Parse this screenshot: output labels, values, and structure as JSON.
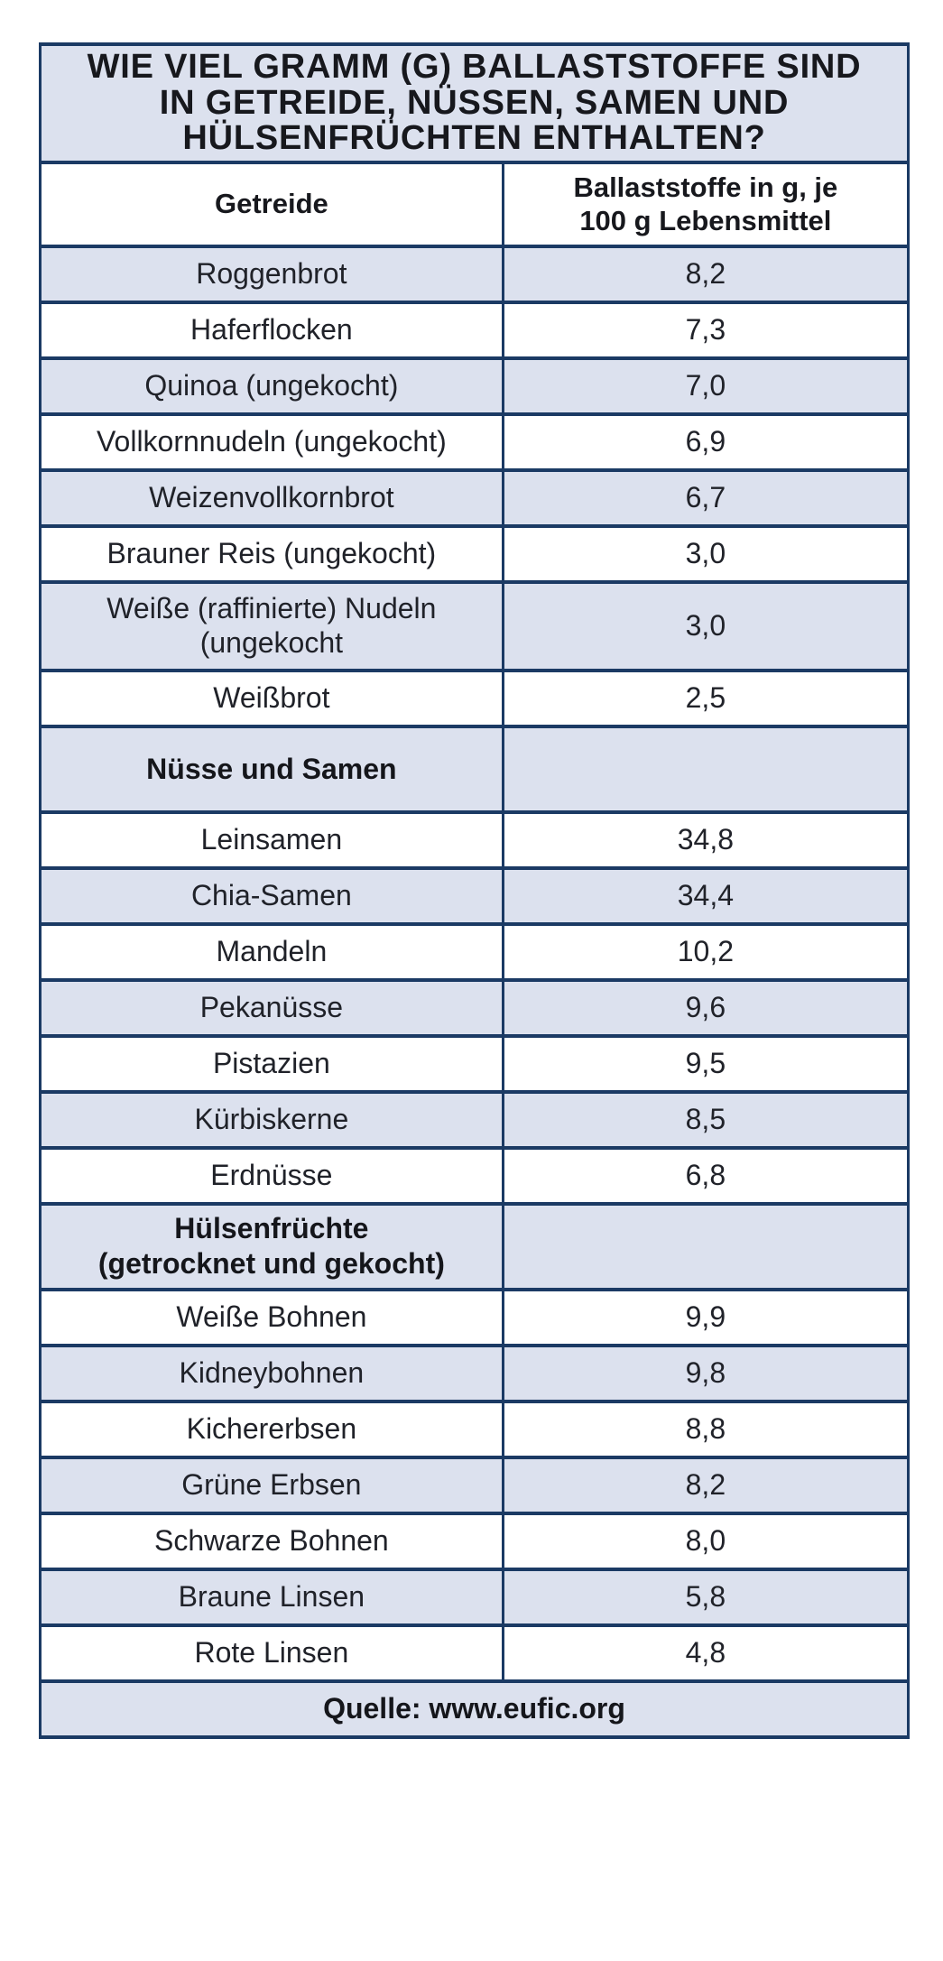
{
  "table": {
    "title": "WIE VIEL GRAMM (G) BALLASTSTOFFE SIND\nIN GETREIDE, NÜSSEN, SAMEN UND\nHÜLSENFRÜCHTEN ENTHALTEN?",
    "header": {
      "col1": "Getreide",
      "col2": "Ballaststoffe in g, je\n100 g Lebensmittel"
    },
    "rows": [
      {
        "type": "item",
        "label": "Roggenbrot",
        "value": "8,2",
        "shaded": true
      },
      {
        "type": "item",
        "label": "Haferflocken",
        "value": "7,3",
        "shaded": false
      },
      {
        "type": "item",
        "label": "Quinoa (ungekocht)",
        "value": "7,0",
        "shaded": true
      },
      {
        "type": "item",
        "label": "Vollkornnudeln (ungekocht)",
        "value": "6,9",
        "shaded": false
      },
      {
        "type": "item",
        "label": "Weizenvollkornbrot",
        "value": "6,7",
        "shaded": true
      },
      {
        "type": "item",
        "label": "Brauner Reis (ungekocht)",
        "value": "3,0",
        "shaded": false
      },
      {
        "type": "item",
        "label": "Weiße (raffinierte) Nudeln\n(ungekocht",
        "value": "3,0",
        "shaded": true,
        "two_line": true
      },
      {
        "type": "item",
        "label": "Weißbrot",
        "value": "2,5",
        "shaded": false
      },
      {
        "type": "section",
        "label": "Nüsse und Samen",
        "value": "",
        "shaded": true
      },
      {
        "type": "item",
        "label": "Leinsamen",
        "value": "34,8",
        "shaded": false
      },
      {
        "type": "item",
        "label": "Chia-Samen",
        "value": "34,4",
        "shaded": true
      },
      {
        "type": "item",
        "label": "Mandeln",
        "value": "10,2",
        "shaded": false
      },
      {
        "type": "item",
        "label": "Pekanüsse",
        "value": "9,6",
        "shaded": true
      },
      {
        "type": "item",
        "label": "Pistazien",
        "value": "9,5",
        "shaded": false
      },
      {
        "type": "item",
        "label": "Kürbiskerne",
        "value": "8,5",
        "shaded": true
      },
      {
        "type": "item",
        "label": "Erdnüsse",
        "value": "6,8",
        "shaded": false
      },
      {
        "type": "section",
        "label": "Hülsenfrüchte\n(getrocknet und gekocht)",
        "value": "",
        "shaded": true
      },
      {
        "type": "item",
        "label": "Weiße Bohnen",
        "value": "9,9",
        "shaded": false
      },
      {
        "type": "item",
        "label": "Kidneybohnen",
        "value": "9,8",
        "shaded": true
      },
      {
        "type": "item",
        "label": "Kichererbsen",
        "value": "8,8",
        "shaded": false
      },
      {
        "type": "item",
        "label": "Grüne Erbsen",
        "value": "8,2",
        "shaded": true
      },
      {
        "type": "item",
        "label": "Schwarze Bohnen",
        "value": "8,0",
        "shaded": false
      },
      {
        "type": "item",
        "label": "Braune Linsen",
        "value": "5,8",
        "shaded": true
      },
      {
        "type": "item",
        "label": "Rote Linsen",
        "value": "4,8",
        "shaded": false
      }
    ],
    "footer": "Quelle: www.eufic.org"
  },
  "colors": {
    "border_navy": "#1b3a64",
    "shaded_row": "#dce1ee",
    "text_dark": "#202229"
  },
  "chart_data": {
    "type": "table",
    "title": "WIE VIEL GRAMM (G) BALLASTSTOFFE SIND IN GETREIDE, NÜSSEN, SAMEN UND HÜLSENFRÜCHTEN ENTHALTEN?",
    "columns": [
      "Getreide",
      "Ballaststoffe in g, je 100 g Lebensmittel"
    ],
    "unit": "g Ballaststoffe je 100 g Lebensmittel",
    "sections": [
      {
        "name": "Getreide",
        "rows": [
          [
            "Roggenbrot",
            8.2
          ],
          [
            "Haferflocken",
            7.3
          ],
          [
            "Quinoa (ungekocht)",
            7.0
          ],
          [
            "Vollkornnudeln (ungekocht)",
            6.9
          ],
          [
            "Weizenvollkornbrot",
            6.7
          ],
          [
            "Brauner Reis (ungekocht)",
            3.0
          ],
          [
            "Weiße (raffinierte) Nudeln (ungekocht",
            3.0
          ],
          [
            "Weißbrot",
            2.5
          ]
        ]
      },
      {
        "name": "Nüsse und Samen",
        "rows": [
          [
            "Leinsamen",
            34.8
          ],
          [
            "Chia-Samen",
            34.4
          ],
          [
            "Mandeln",
            10.2
          ],
          [
            "Pekanüsse",
            9.6
          ],
          [
            "Pistazien",
            9.5
          ],
          [
            "Kürbiskerne",
            8.5
          ],
          [
            "Erdnüsse",
            6.8
          ]
        ]
      },
      {
        "name": "Hülsenfrüchte (getrocknet und gekocht)",
        "rows": [
          [
            "Weiße Bohnen",
            9.9
          ],
          [
            "Kidneybohnen",
            9.8
          ],
          [
            "Kichererbsen",
            8.8
          ],
          [
            "Grüne Erbsen",
            8.2
          ],
          [
            "Schwarze Bohnen",
            8.0
          ],
          [
            "Braune Linsen",
            5.8
          ],
          [
            "Rote Linsen",
            4.8
          ]
        ]
      }
    ],
    "source": "Quelle: www.eufic.org",
    "layout": {
      "grid": true,
      "row_shading": "alternating",
      "value_decimal_separator": ","
    }
  }
}
